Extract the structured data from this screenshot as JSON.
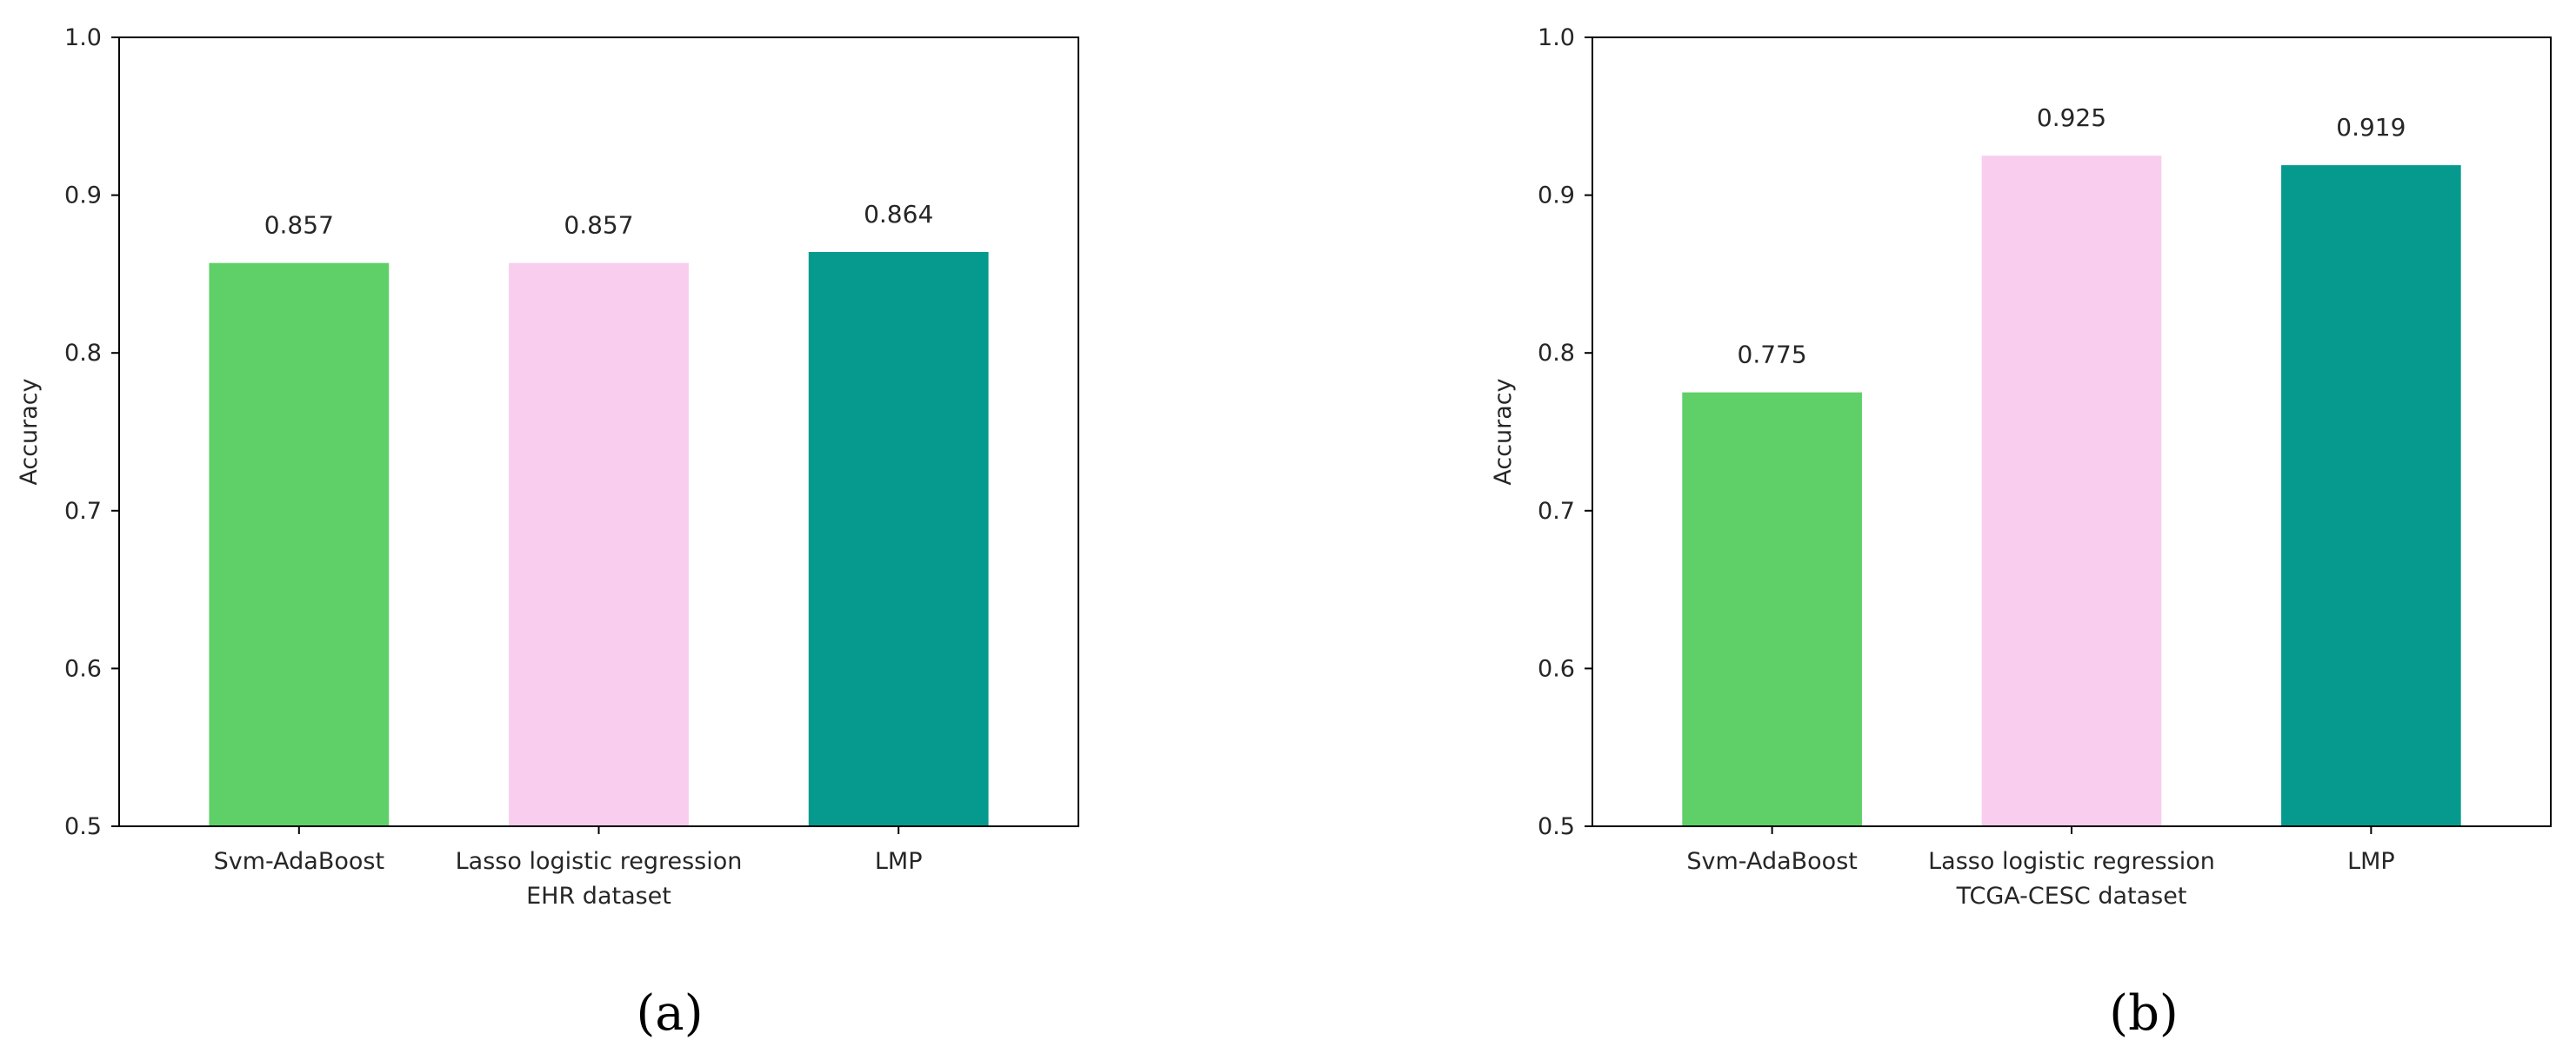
{
  "chart_data": [
    {
      "type": "bar",
      "panel_label": "(a)",
      "categories": [
        "Svm-AdaBoost",
        "Lasso logistic regression",
        "LMP"
      ],
      "values": [
        0.857,
        0.857,
        0.864
      ],
      "data_labels": [
        "0.857",
        "0.857",
        "0.864"
      ],
      "colors": [
        "#5fd068",
        "#f8cdee",
        "#069a8e"
      ],
      "xlabel": "EHR dataset",
      "ylabel": "Accuracy",
      "ylim": [
        0.5,
        1.0
      ],
      "yticks": [
        "0.5",
        "0.6",
        "0.7",
        "0.8",
        "0.9",
        "1.0"
      ],
      "grid": false
    },
    {
      "type": "bar",
      "panel_label": "(b)",
      "categories": [
        "Svm-AdaBoost",
        "Lasso logistic regression",
        "LMP"
      ],
      "values": [
        0.775,
        0.925,
        0.919
      ],
      "data_labels": [
        "0.775",
        "0.925",
        "0.919"
      ],
      "colors": [
        "#5fd068",
        "#f8cdee",
        "#069a8e"
      ],
      "xlabel": "TCGA-CESC dataset",
      "ylabel": "Accuracy",
      "ylim": [
        0.5,
        1.0
      ],
      "yticks": [
        "0.5",
        "0.6",
        "0.7",
        "0.8",
        "0.9",
        "1.0"
      ],
      "grid": false
    }
  ]
}
